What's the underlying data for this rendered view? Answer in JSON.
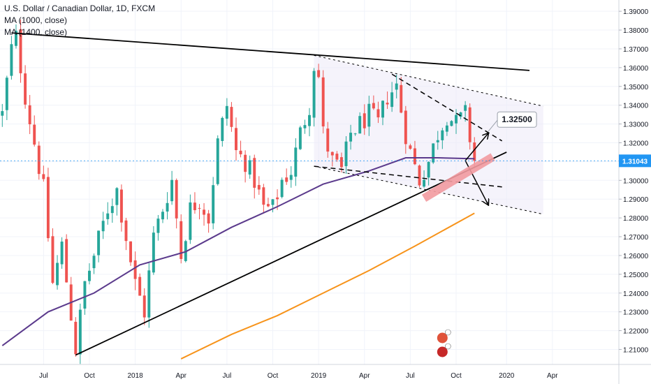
{
  "legend": {
    "symbol": "U.S. Dollar / Canadian Dollar, 1D, FXCM",
    "ma1": "MA (1000, close)",
    "ma2": "MA (1400, close)"
  },
  "colors": {
    "up": "#26a69a",
    "down": "#ef5350",
    "ma1000": "#5b3a8c",
    "ma1400": "#f7931a",
    "trendline": "#000000",
    "channel_fill": "#eceaf8",
    "highlight": "#f29aa0",
    "price_label_bg": "#2196f3",
    "axis_text": "#131722"
  },
  "chart_data": {
    "type": "candlestick",
    "title": "U.S. Dollar / Canadian Dollar, 1D, FXCM",
    "ylim": [
      1.202,
      1.396
    ],
    "y_ticks": [
      "1.39000",
      "1.38000",
      "1.37000",
      "1.36000",
      "1.35000",
      "1.34000",
      "1.33000",
      "1.32000",
      "1.31000",
      "1.30000",
      "1.29000",
      "1.28000",
      "1.27000",
      "1.26000",
      "1.25000",
      "1.24000",
      "1.23000",
      "1.22000",
      "1.21000"
    ],
    "y_tick_values": [
      1.39,
      1.38,
      1.37,
      1.36,
      1.35,
      1.34,
      1.33,
      1.32,
      1.31,
      1.3,
      1.29,
      1.28,
      1.27,
      1.26,
      1.25,
      1.24,
      1.23,
      1.22,
      1.21
    ],
    "x_ticks": [
      "Jul",
      "Oct",
      "2018",
      "Apr",
      "Jul",
      "Oct",
      "2019",
      "Apr",
      "Jul",
      "Oct",
      "2020",
      "Apr"
    ],
    "x_tick_index": [
      9,
      19,
      29,
      39,
      49,
      59,
      69,
      79,
      89,
      99,
      110,
      120
    ],
    "current_price": "1.31043",
    "current_price_value": 1.3104,
    "last_index": 103,
    "total_slots": 135,
    "price_path": [
      [
        0,
        1.335
      ],
      [
        2,
        1.37
      ],
      [
        3,
        1.376
      ],
      [
        5,
        1.345
      ],
      [
        7,
        1.32
      ],
      [
        9,
        1.295
      ],
      [
        11,
        1.245
      ],
      [
        13,
        1.265
      ],
      [
        16,
        1.21
      ],
      [
        18,
        1.245
      ],
      [
        20,
        1.26
      ],
      [
        23,
        1.285
      ],
      [
        25,
        1.295
      ],
      [
        27,
        1.27
      ],
      [
        29,
        1.245
      ],
      [
        31,
        1.23
      ],
      [
        33,
        1.27
      ],
      [
        35,
        1.285
      ],
      [
        37,
        1.3
      ],
      [
        39,
        1.26
      ],
      [
        41,
        1.285
      ],
      [
        43,
        1.29
      ],
      [
        45,
        1.28
      ],
      [
        47,
        1.32
      ],
      [
        49,
        1.34
      ],
      [
        51,
        1.315
      ],
      [
        53,
        1.31
      ],
      [
        55,
        1.3
      ],
      [
        57,
        1.285
      ],
      [
        59,
        1.285
      ],
      [
        61,
        1.3
      ],
      [
        63,
        1.305
      ],
      [
        65,
        1.325
      ],
      [
        67,
        1.34
      ],
      [
        68,
        1.362
      ],
      [
        69,
        1.355
      ],
      [
        70,
        1.325
      ],
      [
        72,
        1.31
      ],
      [
        74,
        1.305
      ],
      [
        76,
        1.325
      ],
      [
        78,
        1.33
      ],
      [
        80,
        1.335
      ],
      [
        82,
        1.33
      ],
      [
        84,
        1.345
      ],
      [
        86,
        1.35
      ],
      [
        88,
        1.325
      ],
      [
        89,
        1.315
      ],
      [
        91,
        1.3
      ],
      [
        93,
        1.31
      ],
      [
        95,
        1.325
      ],
      [
        97,
        1.335
      ],
      [
        99,
        1.33
      ],
      [
        101,
        1.335
      ],
      [
        103,
        1.3104
      ]
    ],
    "series": [
      {
        "name": "MA (1000, close)",
        "points": [
          [
            0,
            1.212
          ],
          [
            10,
            1.23
          ],
          [
            20,
            1.24
          ],
          [
            30,
            1.255
          ],
          [
            40,
            1.262
          ],
          [
            50,
            1.275
          ],
          [
            60,
            1.286
          ],
          [
            70,
            1.298
          ],
          [
            80,
            1.305
          ],
          [
            88,
            1.312
          ],
          [
            95,
            1.312
          ],
          [
            103,
            1.3115
          ]
        ]
      },
      {
        "name": "MA (1400, close)",
        "points": [
          [
            39,
            1.205
          ],
          [
            50,
            1.218
          ],
          [
            60,
            1.228
          ],
          [
            70,
            1.24
          ],
          [
            80,
            1.252
          ],
          [
            90,
            1.265
          ],
          [
            103,
            1.2825
          ]
        ]
      }
    ],
    "annotations": [
      {
        "type": "trendline",
        "points": [
          [
            2,
            1.3785
          ],
          [
            115,
            1.3585
          ]
        ]
      },
      {
        "type": "trendline",
        "points": [
          [
            16,
            1.207
          ],
          [
            110,
            1.315
          ]
        ]
      },
      {
        "type": "dashed_line",
        "points": [
          [
            68,
            1.3665
          ],
          [
            118,
            1.3395
          ]
        ]
      },
      {
        "type": "dashed_line",
        "points": [
          [
            68,
            1.3075
          ],
          [
            118,
            1.282
          ]
        ]
      },
      {
        "type": "dashed_line",
        "points": [
          [
            85,
            1.3565
          ],
          [
            109,
            1.321
          ]
        ]
      },
      {
        "type": "dashed_line",
        "points": [
          [
            68,
            1.3075
          ],
          [
            109,
            1.2965
          ]
        ]
      },
      {
        "type": "arrow",
        "points": [
          [
            101,
            1.3105
          ],
          [
            106,
            1.325
          ]
        ]
      },
      {
        "type": "arrow",
        "points": [
          [
            101,
            1.3105
          ],
          [
            106,
            1.287
          ]
        ]
      },
      {
        "type": "highlight_band",
        "points": [
          [
            92,
            1.2905
          ],
          [
            107,
            1.3125
          ]
        ]
      },
      {
        "type": "callout",
        "text": "1.32500",
        "points": [
          [
            106,
            1.326
          ],
          [
            108,
            1.332
          ]
        ]
      }
    ]
  }
}
